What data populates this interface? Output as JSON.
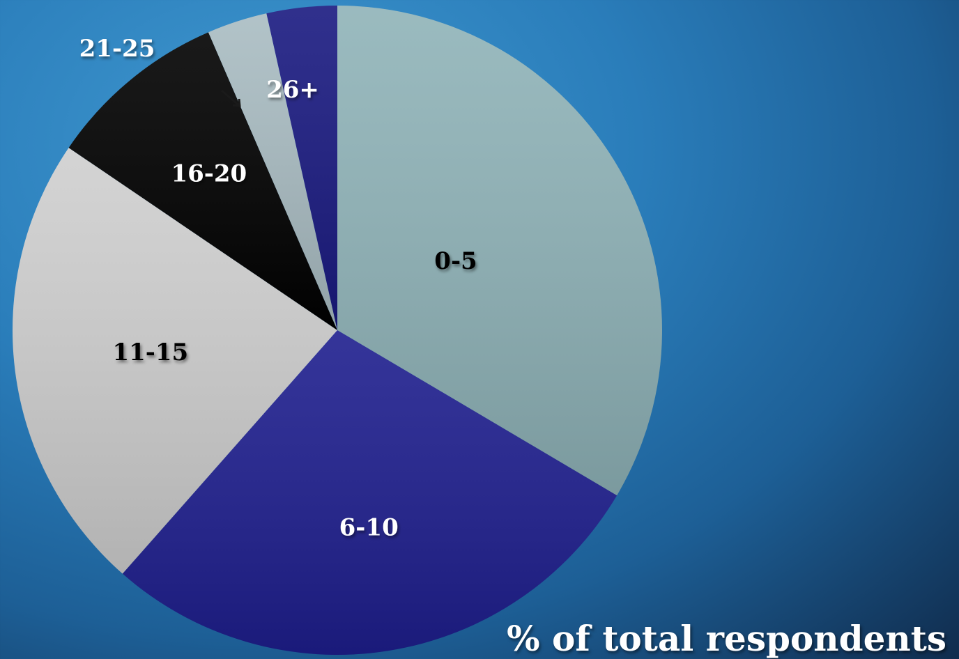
{
  "chart_data": {
    "type": "pie",
    "title": "",
    "caption": "% of total respondents",
    "categories": [
      "0-5",
      "6-10",
      "11-15",
      "16-20",
      "21-25",
      "26+"
    ],
    "values": [
      33.5,
      28.0,
      23.0,
      9.0,
      3.0,
      3.5
    ],
    "colors": [
      "#8fb3b8",
      "#1e1e8e",
      "#cfcfcf",
      "#000000",
      "#a9bcc2",
      "#191980"
    ],
    "label_colors": [
      "#000000",
      "#ffffff",
      "#000000",
      "#ffffff",
      "#ffffff",
      "#ffffff"
    ],
    "start_angle_deg": 0,
    "direction": "clockwise",
    "legend": "none"
  }
}
